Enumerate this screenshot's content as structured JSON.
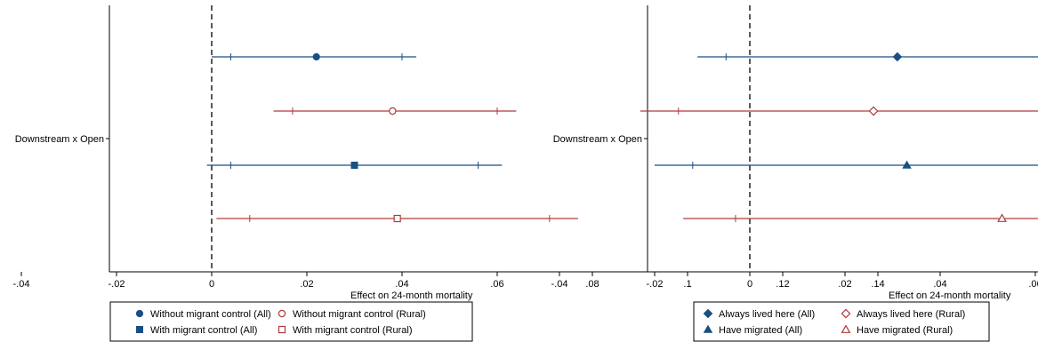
{
  "chart_data": [
    {
      "type": "scatter",
      "title": "",
      "xlabel": "Effect on 24-month mortality",
      "ylabel": "",
      "ytick": "Downstream x Open",
      "xlim": [
        -0.055,
        0.155
      ],
      "xticks": [
        -0.04,
        -0.02,
        0,
        0.02,
        0.04,
        0.06,
        0.08,
        0.1,
        0.12,
        0.14
      ],
      "xtick_labels": [
        "-.04",
        "-.02",
        "0",
        ".02",
        ".04",
        ".06",
        ".08",
        ".1",
        ".12",
        ".14"
      ],
      "reference_line_x": 0,
      "grid": false,
      "legend_position": "bottom",
      "series": [
        {
          "name": "Without migrant control (All)",
          "marker": "circle-filled",
          "color": "#1a4f82",
          "estimate": 0.022,
          "ci90": [
            0.004,
            0.04
          ],
          "ci95": [
            0.0,
            0.043
          ]
        },
        {
          "name": "Without migrant control (Rural)",
          "marker": "circle-hollow",
          "color": "#b03a3a",
          "estimate": 0.038,
          "ci90": [
            0.017,
            0.06
          ],
          "ci95": [
            0.013,
            0.064
          ]
        },
        {
          "name": "With migrant control (All)",
          "marker": "square-filled",
          "color": "#1a4f82",
          "estimate": 0.03,
          "ci90": [
            0.004,
            0.056
          ],
          "ci95": [
            -0.001,
            0.061
          ]
        },
        {
          "name": "With migrant control (Rural)",
          "marker": "square-hollow",
          "color": "#b03a3a",
          "estimate": 0.039,
          "ci90": [
            0.008,
            0.071
          ],
          "ci95": [
            0.001,
            0.077
          ]
        }
      ]
    },
    {
      "type": "scatter",
      "title": "",
      "xlabel": "Effect on 24-month mortality",
      "ylabel": "",
      "ytick": "Downstream x Open",
      "xlim": [
        -0.055,
        0.155
      ],
      "xticks": [
        -0.04,
        -0.02,
        0,
        0.02,
        0.04,
        0.06,
        0.08,
        0.1,
        0.12,
        0.14
      ],
      "xtick_labels": [
        "-.04",
        "-.02",
        "0",
        ".02",
        ".04",
        ".06",
        ".08",
        ".1",
        ".12",
        ".14"
      ],
      "reference_line_x": 0,
      "grid": false,
      "legend_position": "bottom",
      "series": [
        {
          "name": "Always lived here (All)",
          "marker": "diamond-filled",
          "color": "#1a4f82",
          "estimate": 0.031,
          "ci90": [
            -0.005,
            0.066
          ],
          "ci95": [
            -0.011,
            0.072
          ]
        },
        {
          "name": "Always lived here (Rural)",
          "marker": "diamond-hollow",
          "color": "#b03a3a",
          "estimate": 0.026,
          "ci90": [
            -0.015,
            0.068
          ],
          "ci95": [
            -0.023,
            0.076
          ]
        },
        {
          "name": "Have migrated (All)",
          "marker": "triangle-filled",
          "color": "#1a4f82",
          "estimate": 0.033,
          "ci90": [
            -0.012,
            0.078
          ],
          "ci95": [
            -0.02,
            0.087
          ]
        },
        {
          "name": "Have migrated (Rural)",
          "marker": "triangle-hollow",
          "color": "#b03a3a",
          "estimate": 0.053,
          "ci90": [
            -0.003,
            0.11
          ],
          "ci95": [
            -0.014,
            0.122
          ]
        }
      ]
    }
  ]
}
